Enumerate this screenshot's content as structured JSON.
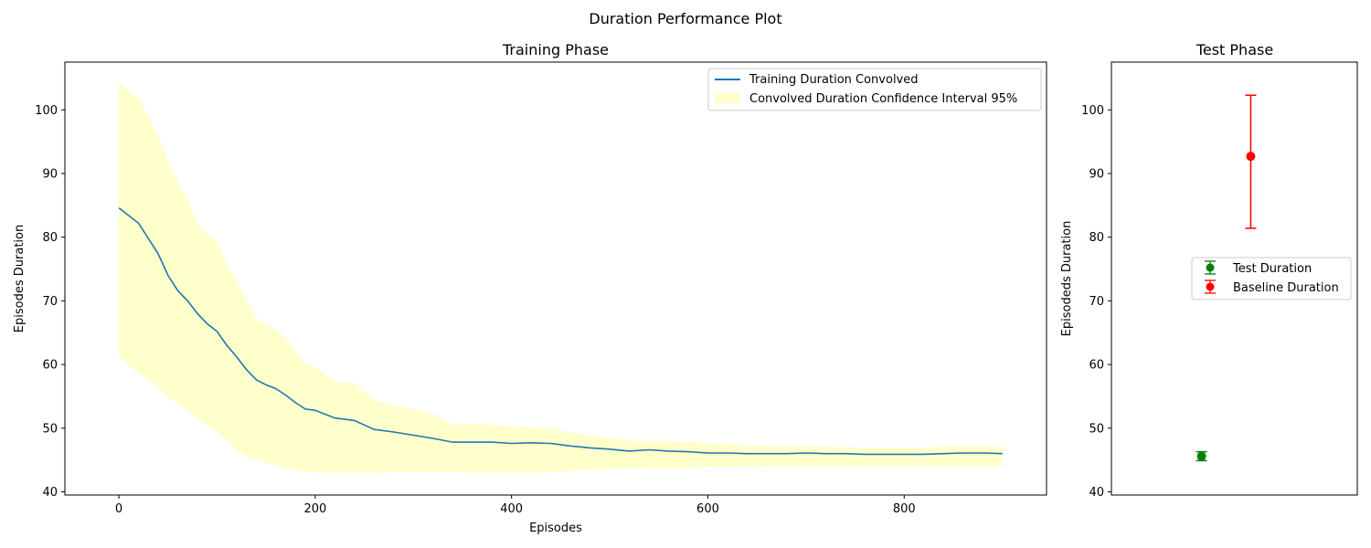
{
  "figure_title": "Duration Performance Plot",
  "chart_data": [
    {
      "type": "line",
      "title": "Training Phase",
      "xlabel": "Episodes",
      "ylabel": "Episodes Duration",
      "xlim": [
        -55,
        945
      ],
      "ylim": [
        39.5,
        107.5
      ],
      "xticks": [
        0,
        200,
        400,
        600,
        800
      ],
      "yticks": [
        40,
        50,
        60,
        70,
        80,
        90,
        100
      ],
      "grid": false,
      "legend_position": "top-right",
      "series": [
        {
          "name": "Training Duration Convolved",
          "color": "#1f77b4",
          "x": [
            0,
            10,
            20,
            30,
            40,
            50,
            60,
            70,
            80,
            90,
            100,
            110,
            120,
            130,
            140,
            150,
            160,
            170,
            180,
            190,
            200,
            220,
            240,
            260,
            280,
            300,
            320,
            340,
            360,
            380,
            400,
            420,
            440,
            460,
            480,
            500,
            520,
            540,
            560,
            580,
            600,
            620,
            640,
            660,
            680,
            700,
            720,
            740,
            760,
            780,
            800,
            820,
            840,
            860,
            880,
            900
          ],
          "y": [
            84.6,
            83.4,
            82.2,
            79.8,
            77.4,
            74.0,
            71.6,
            70.0,
            68.0,
            66.4,
            65.2,
            63.0,
            61.2,
            59.2,
            57.6,
            56.8,
            56.2,
            55.2,
            54.0,
            53.0,
            52.8,
            51.6,
            51.2,
            49.8,
            49.4,
            48.9,
            48.4,
            47.8,
            47.8,
            47.8,
            47.6,
            47.7,
            47.6,
            47.2,
            46.9,
            46.7,
            46.4,
            46.6,
            46.4,
            46.3,
            46.1,
            46.1,
            46.0,
            46.0,
            46.0,
            46.1,
            46.0,
            46.0,
            45.9,
            45.9,
            45.9,
            45.9,
            46.0,
            46.1,
            46.1,
            46.0
          ]
        },
        {
          "name": "Convolved Duration Confidence Interval 95%",
          "color": "#ffffcc",
          "type": "area",
          "x": [
            0,
            10,
            20,
            30,
            40,
            50,
            60,
            70,
            80,
            90,
            100,
            110,
            120,
            130,
            140,
            150,
            160,
            170,
            180,
            190,
            200,
            220,
            240,
            260,
            280,
            300,
            320,
            340,
            360,
            380,
            400,
            420,
            440,
            460,
            480,
            500,
            520,
            540,
            560,
            580,
            600,
            620,
            640,
            660,
            680,
            700,
            720,
            740,
            760,
            780,
            800,
            820,
            840,
            860,
            880,
            900
          ],
          "upper": [
            104.4,
            102.8,
            101.8,
            99.0,
            96.0,
            92.0,
            88.6,
            86.0,
            82.0,
            80.6,
            79.2,
            75.8,
            73.0,
            70.0,
            67.2,
            66.2,
            65.5,
            64.2,
            62.0,
            60.2,
            59.5,
            57.4,
            57.0,
            54.4,
            53.6,
            53.0,
            52.2,
            50.6,
            50.6,
            50.5,
            50.3,
            50.1,
            50.0,
            49.3,
            48.8,
            48.4,
            48.0,
            48.0,
            48.0,
            47.8,
            47.6,
            47.5,
            47.3,
            47.2,
            47.2,
            47.2,
            47.1,
            47.0,
            46.9,
            46.9,
            46.9,
            46.9,
            47.1,
            47.2,
            47.2,
            47.0
          ],
          "lower": [
            61.2,
            60.0,
            58.6,
            57.6,
            56.4,
            55.0,
            53.8,
            52.8,
            51.6,
            50.4,
            49.4,
            48.0,
            46.6,
            45.6,
            45.0,
            44.6,
            44.2,
            43.8,
            43.4,
            43.2,
            43.0,
            43.0,
            43.0,
            43.0,
            43.1,
            43.2,
            43.2,
            43.2,
            43.0,
            43.0,
            43.0,
            43.0,
            43.1,
            43.3,
            43.5,
            43.6,
            43.7,
            43.7,
            43.8,
            43.8,
            43.9,
            43.9,
            43.9,
            44.0,
            44.0,
            44.0,
            44.0,
            44.0,
            44.0,
            44.0,
            44.0,
            44.0,
            44.0,
            44.0,
            44.0,
            44.0
          ]
        }
      ]
    },
    {
      "type": "scatter",
      "title": "Test Phase",
      "xlabel": "",
      "ylabel": "Episodeds Duration",
      "xlim": [
        -0.5,
        2.5
      ],
      "ylim": [
        39.5,
        107.5
      ],
      "yticks": [
        40,
        50,
        60,
        70,
        80,
        90,
        100
      ],
      "grid": false,
      "legend_position": "center-right",
      "series": [
        {
          "name": "Test Duration",
          "color": "#008000",
          "x": [
            0.6
          ],
          "y": [
            45.6
          ],
          "err_low": [
            44.9
          ],
          "err_high": [
            46.3
          ]
        },
        {
          "name": "Baseline Duration",
          "color": "#ff0000",
          "x": [
            1.2
          ],
          "y": [
            92.7
          ],
          "err_low": [
            81.4
          ],
          "err_high": [
            102.3
          ]
        }
      ]
    }
  ]
}
